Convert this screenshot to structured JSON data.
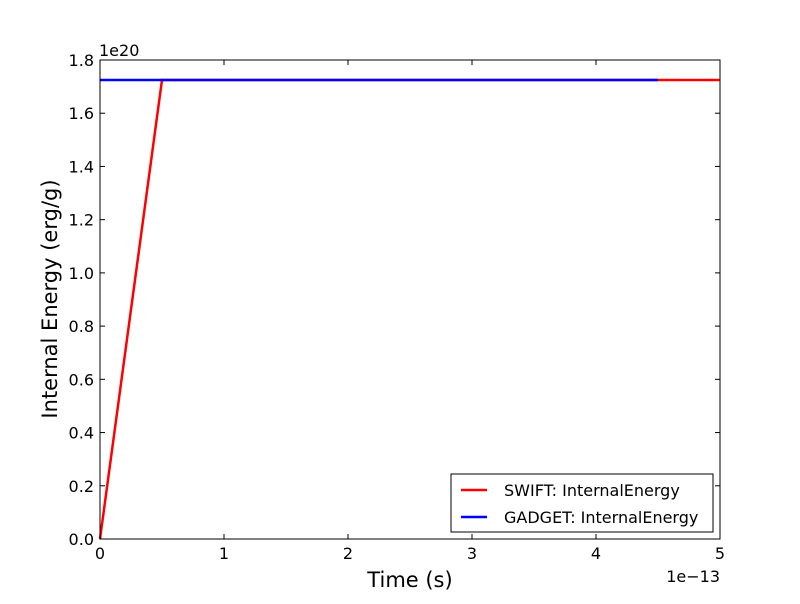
{
  "chart_data": {
    "type": "line",
    "xlabel": "Time (s)",
    "ylabel": "Internal Energy (erg/g)",
    "x_multiplier_label": "1e−13",
    "y_multiplier_label": "1e20",
    "x_scale": 1e-13,
    "y_scale": 1e+20,
    "xlim": [
      0,
      5
    ],
    "ylim": [
      0,
      1.8
    ],
    "xticks": [
      0,
      1,
      2,
      3,
      4,
      5
    ],
    "xtick_labels": [
      "0",
      "1",
      "2",
      "3",
      "4",
      "5"
    ],
    "yticks": [
      0.0,
      0.2,
      0.4,
      0.6,
      0.8,
      1.0,
      1.2,
      1.4,
      1.6,
      1.8
    ],
    "ytick_labels": [
      "0.0",
      "0.2",
      "0.4",
      "0.6",
      "0.8",
      "1.0",
      "1.2",
      "1.4",
      "1.6",
      "1.8"
    ],
    "grid": false,
    "legend_position": "lower-right",
    "series": [
      {
        "name": "SWIFT: InternalEnergy",
        "color": "#ff0000",
        "x": [
          0,
          0.5,
          5.0
        ],
        "y": [
          0,
          1.725,
          1.725
        ]
      },
      {
        "name": "GADGET: InternalEnergy",
        "color": "#0000ff",
        "x": [
          0,
          4.5
        ],
        "y": [
          1.725,
          1.725
        ]
      }
    ]
  }
}
